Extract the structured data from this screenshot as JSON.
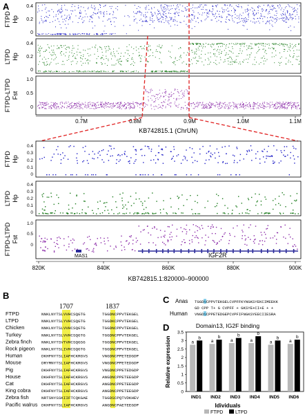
{
  "panels": {
    "a": "A",
    "b": "B",
    "c": "C",
    "d": "D"
  },
  "colors": {
    "ftpd": "#1c1cc6",
    "ltpd": "#1a7a1a",
    "fst": "#8a2aa8",
    "dash": "#e02020",
    "highlight": "#f2ef4a",
    "cyan": "#2aa7d8",
    "bar_ftpd": "#b8b8b8",
    "bar_ltpd": "#000000"
  },
  "panel_a_top": {
    "xlabel": "KB742815.1 (ChrUN)",
    "xticks": [
      "0.7M",
      "0.8M",
      "0.9M",
      "1.0M",
      "1.1M"
    ],
    "tracks": [
      {
        "name": "FTPD",
        "metric": "Hp",
        "yticks": [
          "0",
          "0.2",
          "0.4"
        ]
      },
      {
        "name": "LTPD",
        "metric": "Hp",
        "yticks": [
          "0",
          "0.2",
          "0.4"
        ]
      },
      {
        "name": "FTPD-LTPD",
        "metric": "Fst",
        "yticks": [
          "0",
          "0.5",
          "1.0"
        ]
      }
    ]
  },
  "panel_a_zoom": {
    "xlabel": "KB742815.1:820000–900000",
    "xticks": [
      "820K",
      "840K",
      "860K",
      "880K",
      "900K"
    ],
    "tracks": [
      {
        "name": "FTPD",
        "metric": "Hp",
        "yticks": [
          "0",
          "0.1",
          "0.2",
          "0.3",
          "0.4"
        ]
      },
      {
        "name": "LTPD",
        "metric": "Hp",
        "yticks": [
          "0",
          "0.1",
          "0.2",
          "0.3",
          "0.4"
        ]
      },
      {
        "name": "FTPD-LTPD",
        "metric": "Fst",
        "yticks": [
          "0",
          "0.5",
          "1.0"
        ]
      }
    ],
    "genes": [
      "MAS1",
      "IGF2R"
    ]
  },
  "panel_b": {
    "pos1": "1707",
    "pos2": "1837",
    "rows": [
      {
        "species": "FTPD",
        "seq1": "NNKLNYTSLVVHCSQGTG",
        "seq2": "TGGDNCPPVTEKGEL"
      },
      {
        "species": "LTPD",
        "seq1": "NNKLNYTSLYVHCSQGTG",
        "seq2": "TGGDKCPPVTEKGEL"
      },
      {
        "species": "Chicken",
        "seq1": "NNKLNYTSLVVHCSQGTG",
        "seq2": "TGGDNCPPVTEKGEL"
      },
      {
        "species": "Turkey",
        "seq1": "NNKLNYTSLVVHCSQGTG",
        "seq2": "TGGDNCPPVTEKGEL"
      },
      {
        "species": "Zebra finch",
        "seq1": "NNKLNYTSVTVHCSQGSG",
        "seq2": "TGGDNCPPVTEKGEL"
      },
      {
        "species": "Rock pigeon",
        "seq1": "NNKLNYTSLIVHCSQGTG",
        "seq2": "TGGDNCPPVTEKGEL"
      },
      {
        "species": "Human",
        "seq1": "DKHFNYTSLIAFHCKRGVS",
        "seq2": "VNGDNCPPETEDGDP"
      },
      {
        "species": "Mouse",
        "seq1": "DRYMNYTSLIAFHCKRGVS",
        "seq2": "VNGDNCPPETEDGDP"
      },
      {
        "species": "Pig",
        "seq1": "DKHFNYTSLIAFHCKRGVS",
        "seq2": "VNGDNCPPETEDGDP"
      },
      {
        "species": "House",
        "seq1": "DKHFNYTSLIAFHCKRGVS",
        "seq2": "ANGDNCPPETEEGDP"
      },
      {
        "species": "Cat",
        "seq1": "DKHFNYTSLIAFHCKRGVS",
        "seq2": "ANGDNCPPETEEGDP"
      },
      {
        "species": "King cobra",
        "seq1": "DKHFNYTSLIAFHCKRGVS",
        "seq2": "ANGDNCPPETEEGDP"
      },
      {
        "species": "Zebra fish",
        "seq1": "NRTSNYSSKIIFTCQKGAE",
        "seq2": "TGGDSCPQTVDKHEV"
      },
      {
        "species": "Pacific walrus",
        "seq1": "DKHFNYTSLIAFHCKRGVS",
        "seq2": "ANGDNCPAETEEGDP"
      }
    ]
  },
  "panel_c": {
    "rows": [
      {
        "species": "Anas",
        "seq": "TGGDNCPPVTEKGELCVPFFKYNGKSYEKCIMEEKK"
      },
      {
        "species": "",
        "seq": "GD CPP T+ G  CVPFF + GKSYE+CI+E + +"
      },
      {
        "species": "Human",
        "seq": "VNGDNCPPETEDGEPCVPFIFNGKSYEECIIESRA"
      }
    ]
  },
  "panel_d": {
    "title": "Domain13, IG2F binding",
    "ylabel": "Relative expression",
    "xlabel": "Idividuals",
    "yticks": [
      "0",
      "0.5",
      "1",
      "1.5",
      "2",
      "2.5",
      "3",
      "3.5"
    ],
    "legend": [
      "FTPD",
      "LTPD"
    ]
  },
  "chart_data": [
    {
      "type": "bar",
      "title": "Domain13, IG2F binding",
      "xlabel": "Idividuals",
      "ylabel": "Relative expression",
      "ylim": [
        0,
        3.5
      ],
      "categories": [
        "IND1",
        "IND2",
        "IND3",
        "IND4",
        "IND5",
        "IND6"
      ],
      "series": [
        {
          "name": "FTPD",
          "values": [
            2.75,
            2.8,
            2.85,
            2.85,
            2.75,
            2.8
          ],
          "labels": [
            "a",
            "a",
            "a",
            "a",
            "a",
            "a"
          ]
        },
        {
          "name": "LTPD",
          "values": [
            3.0,
            3.05,
            3.15,
            3.25,
            3.0,
            3.05
          ],
          "labels": [
            "b",
            "b",
            "b",
            "b",
            "b",
            "b"
          ]
        }
      ],
      "legend": "bottom"
    }
  ]
}
